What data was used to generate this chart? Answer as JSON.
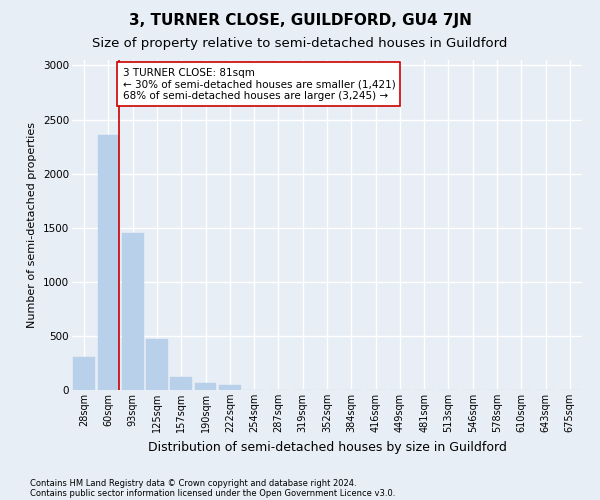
{
  "title": "3, TURNER CLOSE, GUILDFORD, GU4 7JN",
  "subtitle": "Size of property relative to semi-detached houses in Guildford",
  "xlabel": "Distribution of semi-detached houses by size in Guildford",
  "ylabel": "Number of semi-detached properties",
  "categories": [
    "28sqm",
    "60sqm",
    "93sqm",
    "125sqm",
    "157sqm",
    "190sqm",
    "222sqm",
    "254sqm",
    "287sqm",
    "319sqm",
    "352sqm",
    "384sqm",
    "416sqm",
    "449sqm",
    "481sqm",
    "513sqm",
    "546sqm",
    "578sqm",
    "610sqm",
    "643sqm",
    "675sqm"
  ],
  "values": [
    305,
    2360,
    1455,
    475,
    120,
    65,
    45,
    0,
    0,
    0,
    0,
    0,
    0,
    0,
    0,
    0,
    0,
    0,
    0,
    0,
    0
  ],
  "bar_color": "#b8d0ea",
  "bar_edge_color": "#b8d0ea",
  "property_line_color": "#cc0000",
  "annotation_text": "3 TURNER CLOSE: 81sqm\n← 30% of semi-detached houses are smaller (1,421)\n68% of semi-detached houses are larger (3,245) →",
  "annotation_box_color": "#ffffff",
  "annotation_box_edge": "#cc0000",
  "ylim": [
    0,
    3050
  ],
  "yticks": [
    0,
    500,
    1000,
    1500,
    2000,
    2500,
    3000
  ],
  "footer_line1": "Contains HM Land Registry data © Crown copyright and database right 2024.",
  "footer_line2": "Contains public sector information licensed under the Open Government Licence v3.0.",
  "bg_color": "#e8eef5",
  "plot_bg_color": "#e8eef5",
  "grid_color": "#ffffff",
  "title_fontsize": 11,
  "subtitle_fontsize": 9.5,
  "ylabel_fontsize": 8,
  "xlabel_fontsize": 9,
  "tick_fontsize": 7,
  "annotation_fontsize": 7.5,
  "footer_fontsize": 6
}
